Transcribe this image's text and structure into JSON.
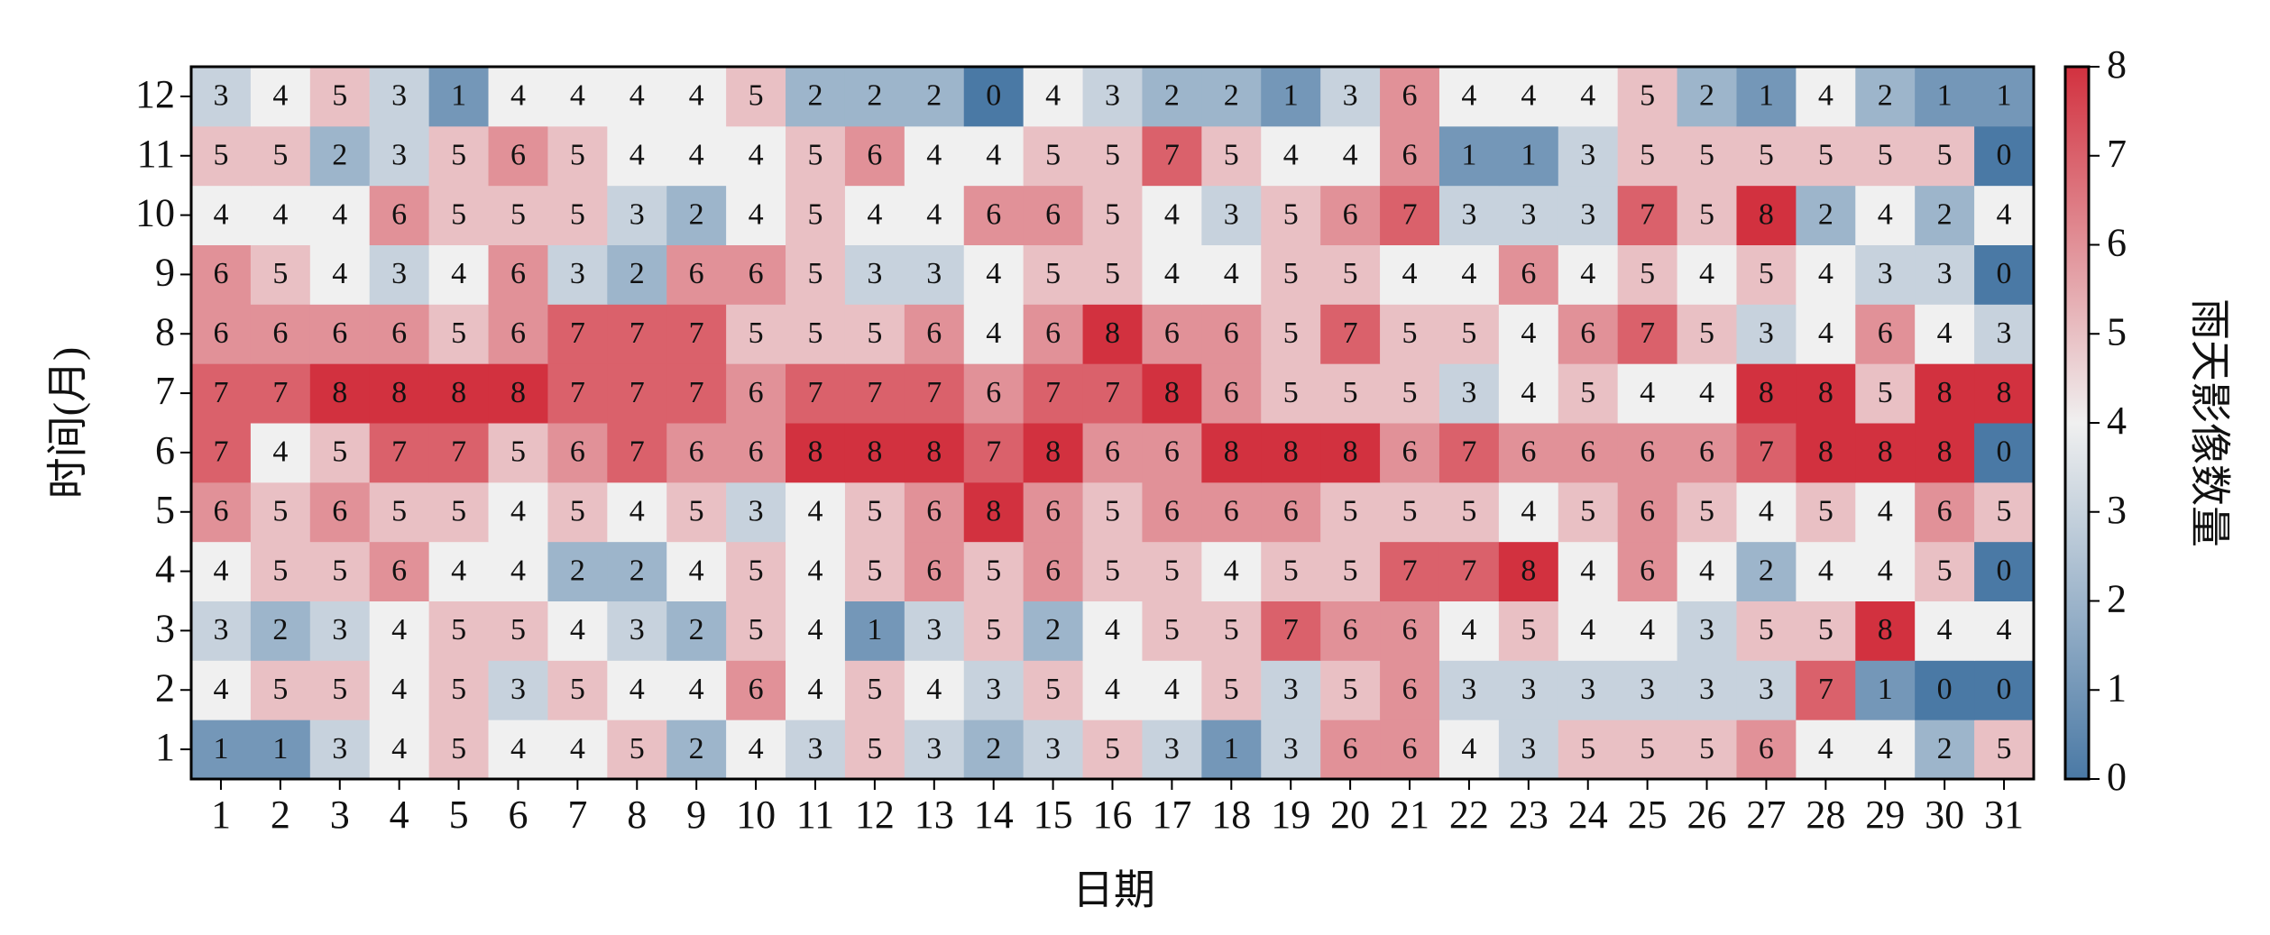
{
  "chart_data": {
    "type": "heatmap",
    "xlabel": "日期",
    "ylabel": "时间(月)",
    "colorbar_label": "雨天影像数量",
    "x": [
      1,
      2,
      3,
      4,
      5,
      6,
      7,
      8,
      9,
      10,
      11,
      12,
      13,
      14,
      15,
      16,
      17,
      18,
      19,
      20,
      21,
      22,
      23,
      24,
      25,
      26,
      27,
      28,
      29,
      30,
      31
    ],
    "y": [
      1,
      2,
      3,
      4,
      5,
      6,
      7,
      8,
      9,
      10,
      11,
      12
    ],
    "values": [
      [
        1,
        1,
        3,
        4,
        5,
        4,
        4,
        5,
        2,
        4,
        3,
        5,
        3,
        2,
        3,
        5,
        3,
        1,
        3,
        6,
        6,
        4,
        3,
        5,
        5,
        5,
        6,
        4,
        4,
        2,
        5
      ],
      [
        4,
        5,
        5,
        4,
        5,
        3,
        5,
        4,
        4,
        6,
        4,
        5,
        4,
        3,
        5,
        4,
        4,
        5,
        3,
        5,
        6,
        3,
        3,
        3,
        3,
        3,
        3,
        7,
        1,
        0,
        0
      ],
      [
        3,
        2,
        3,
        4,
        5,
        5,
        4,
        3,
        2,
        5,
        4,
        1,
        3,
        5,
        2,
        4,
        5,
        5,
        7,
        6,
        6,
        4,
        5,
        4,
        4,
        3,
        5,
        5,
        8,
        4,
        4
      ],
      [
        4,
        5,
        5,
        6,
        4,
        4,
        2,
        2,
        4,
        5,
        4,
        5,
        6,
        5,
        6,
        5,
        5,
        4,
        5,
        5,
        7,
        7,
        8,
        4,
        6,
        4,
        2,
        4,
        4,
        5,
        0
      ],
      [
        6,
        5,
        6,
        5,
        5,
        4,
        5,
        4,
        5,
        3,
        4,
        5,
        6,
        8,
        6,
        5,
        6,
        6,
        6,
        5,
        5,
        5,
        4,
        5,
        6,
        5,
        4,
        5,
        4,
        6,
        5
      ],
      [
        7,
        4,
        5,
        7,
        7,
        5,
        6,
        7,
        6,
        6,
        8,
        8,
        8,
        7,
        8,
        6,
        6,
        8,
        8,
        8,
        6,
        7,
        6,
        6,
        6,
        6,
        7,
        8,
        8,
        8,
        0
      ],
      [
        7,
        7,
        8,
        8,
        8,
        8,
        7,
        7,
        7,
        6,
        7,
        7,
        7,
        6,
        7,
        7,
        8,
        6,
        5,
        5,
        5,
        3,
        4,
        5,
        4,
        4,
        8,
        8,
        5,
        8,
        8
      ],
      [
        6,
        6,
        6,
        6,
        5,
        6,
        7,
        7,
        7,
        5,
        5,
        5,
        6,
        4,
        6,
        8,
        6,
        6,
        5,
        7,
        5,
        5,
        4,
        6,
        7,
        5,
        3,
        4,
        6,
        4,
        3
      ],
      [
        6,
        5,
        4,
        3,
        4,
        6,
        3,
        2,
        6,
        6,
        5,
        3,
        3,
        4,
        5,
        5,
        4,
        4,
        5,
        5,
        4,
        4,
        6,
        4,
        5,
        4,
        5,
        4,
        3,
        3,
        0
      ],
      [
        4,
        4,
        4,
        6,
        5,
        5,
        5,
        3,
        2,
        4,
        5,
        4,
        4,
        6,
        6,
        5,
        4,
        3,
        5,
        6,
        7,
        3,
        3,
        3,
        7,
        5,
        8,
        2,
        4,
        2,
        4
      ],
      [
        5,
        5,
        2,
        3,
        5,
        6,
        5,
        4,
        4,
        4,
        5,
        6,
        4,
        4,
        5,
        5,
        7,
        5,
        4,
        4,
        6,
        1,
        1,
        3,
        5,
        5,
        5,
        5,
        5,
        5,
        0
      ],
      [
        3,
        4,
        5,
        3,
        1,
        4,
        4,
        4,
        4,
        5,
        2,
        2,
        2,
        0,
        4,
        3,
        2,
        2,
        1,
        3,
        6,
        4,
        4,
        4,
        5,
        2,
        1,
        4,
        2,
        1,
        1
      ]
    ],
    "zlim": [
      0,
      8
    ],
    "zticks": [
      0,
      1,
      2,
      3,
      4,
      5,
      6,
      7,
      8
    ],
    "colormap": [
      "#4a79a5",
      "#f0f0f0",
      "#d2313f"
    ]
  }
}
